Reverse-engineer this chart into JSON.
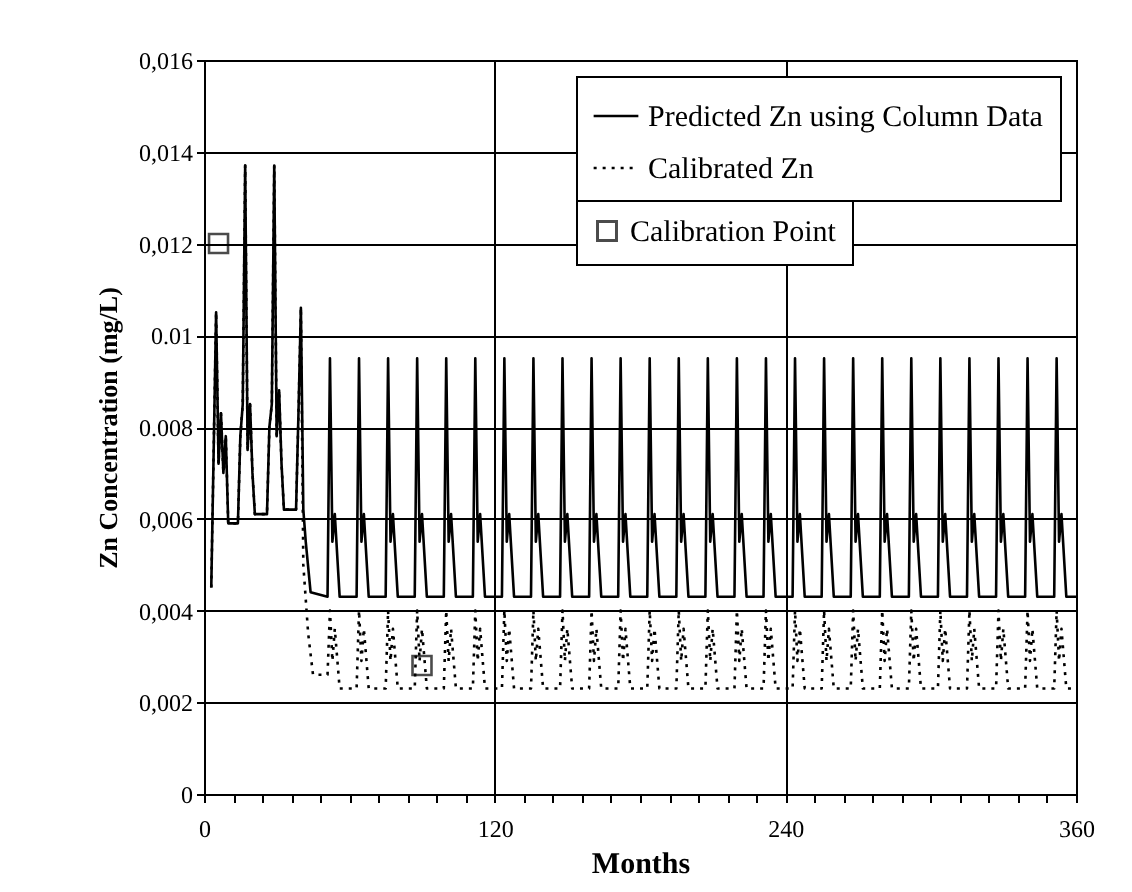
{
  "chart_data": {
    "type": "line",
    "xlabel": "Months",
    "ylabel": "Zn Concentration (mg/L)",
    "xlim": [
      0,
      360
    ],
    "ylim": [
      0,
      0.016
    ],
    "xticks": [
      0,
      {
        "value": 12,
        "label": null
      },
      {
        "value": 24,
        "label": null
      },
      {
        "value": 36,
        "label": null
      },
      {
        "value": 48,
        "label": null
      },
      {
        "value": 60,
        "label": null
      },
      {
        "value": 72,
        "label": null
      },
      {
        "value": 84,
        "label": null
      },
      {
        "value": 96,
        "label": null
      },
      {
        "value": 108,
        "label": null
      },
      120,
      {
        "value": 132,
        "label": null
      },
      {
        "value": 144,
        "label": null
      },
      {
        "value": 156,
        "label": null
      },
      {
        "value": 168,
        "label": null
      },
      {
        "value": 180,
        "label": null
      },
      {
        "value": 192,
        "label": null
      },
      {
        "value": 204,
        "label": null
      },
      {
        "value": 216,
        "label": null
      },
      {
        "value": 228,
        "label": null
      },
      240,
      {
        "value": 252,
        "label": null
      },
      {
        "value": 264,
        "label": null
      },
      {
        "value": 276,
        "label": null
      },
      {
        "value": 288,
        "label": null
      },
      {
        "value": 300,
        "label": null
      },
      {
        "value": 312,
        "label": null
      },
      {
        "value": 324,
        "label": null
      },
      {
        "value": 336,
        "label": null
      },
      {
        "value": 348,
        "label": null
      },
      360
    ],
    "yticks": [
      0,
      {
        "value": 0.002,
        "label": "0,002"
      },
      {
        "value": 0.004,
        "label": "0,004"
      },
      {
        "value": 0.006,
        "label": "0,006"
      },
      {
        "value": 0.008,
        "label": "0.008"
      },
      {
        "value": 0.01,
        "label": "0.01"
      },
      {
        "value": 0.012,
        "label": "0,012"
      },
      {
        "value": 0.014,
        "label": "0,014"
      },
      {
        "value": 0.016,
        "label": "0,016"
      }
    ],
    "grid": true,
    "legend": "top right",
    "series": [
      {
        "name": "Predicted Zn using Column Data",
        "type": "line",
        "color": "#000000",
        "line_style": "solid",
        "x": [
          3,
          4,
          5,
          6,
          7,
          8,
          9,
          10,
          14,
          15,
          16,
          17,
          18,
          19,
          20,
          21,
          26,
          27,
          28,
          29,
          30,
          31,
          32,
          33,
          38,
          39,
          40,
          41,
          42,
          44,
          51,
          52,
          53,
          54,
          56,
          63,
          64,
          65,
          66,
          68,
          75,
          76,
          77,
          78,
          80,
          87,
          88,
          89,
          90,
          92,
          99,
          100,
          101,
          102,
          104,
          111,
          112,
          113,
          114,
          116,
          123,
          124,
          125,
          126,
          128,
          135,
          136,
          137,
          138,
          140,
          147,
          148,
          149,
          150,
          152,
          159,
          160,
          161,
          162,
          164,
          171,
          172,
          173,
          174,
          176,
          183,
          184,
          185,
          186,
          188,
          195,
          196,
          197,
          198,
          200,
          207,
          208,
          209,
          210,
          212,
          219,
          220,
          221,
          222,
          224,
          231,
          232,
          233,
          234,
          236,
          243,
          244,
          245,
          246,
          248,
          255,
          256,
          257,
          258,
          260,
          267,
          268,
          269,
          270,
          272,
          279,
          280,
          281,
          282,
          284,
          291,
          292,
          293,
          294,
          296,
          303,
          304,
          305,
          306,
          308,
          315,
          316,
          317,
          318,
          320,
          327,
          328,
          329,
          330,
          332,
          339,
          340,
          341,
          342,
          344,
          351,
          352,
          353,
          354,
          356,
          360
        ],
        "values": [
          0.0045,
          0.0075,
          0.0105,
          0.0072,
          0.0083,
          0.007,
          0.0078,
          0.0059,
          0.0059,
          0.0078,
          0.0085,
          0.0137,
          0.0075,
          0.0085,
          0.007,
          0.0061,
          0.0061,
          0.008,
          0.0085,
          0.0137,
          0.0078,
          0.0088,
          0.0072,
          0.0062,
          0.0062,
          0.0083,
          0.0106,
          0.0062,
          0.0055,
          0.0044,
          0.0043,
          0.0095,
          0.0055,
          0.0061,
          0.0043,
          0.0043,
          0.0095,
          0.0055,
          0.0061,
          0.0043,
          0.0043,
          0.0095,
          0.0055,
          0.0061,
          0.0043,
          0.0043,
          0.0095,
          0.0055,
          0.0061,
          0.0043,
          0.0043,
          0.0095,
          0.0055,
          0.0061,
          0.0043,
          0.0043,
          0.0095,
          0.0055,
          0.0061,
          0.0043,
          0.0043,
          0.0095,
          0.0055,
          0.0061,
          0.0043,
          0.0043,
          0.0095,
          0.0055,
          0.0061,
          0.0043,
          0.0043,
          0.0095,
          0.0055,
          0.0061,
          0.0043,
          0.0043,
          0.0095,
          0.0055,
          0.0061,
          0.0043,
          0.0043,
          0.0095,
          0.0055,
          0.0061,
          0.0043,
          0.0043,
          0.0095,
          0.0055,
          0.0061,
          0.0043,
          0.0043,
          0.0095,
          0.0055,
          0.0061,
          0.0043,
          0.0043,
          0.0095,
          0.0055,
          0.0061,
          0.0043,
          0.0043,
          0.0095,
          0.0055,
          0.0061,
          0.0043,
          0.0043,
          0.0095,
          0.0055,
          0.0061,
          0.0043,
          0.0043,
          0.0095,
          0.0055,
          0.0061,
          0.0043,
          0.0043,
          0.0095,
          0.0055,
          0.0061,
          0.0043,
          0.0043,
          0.0095,
          0.0055,
          0.0061,
          0.0043,
          0.0043,
          0.0095,
          0.0055,
          0.0061,
          0.0043,
          0.0043,
          0.0095,
          0.0055,
          0.0061,
          0.0043,
          0.0043,
          0.0095,
          0.0055,
          0.0061,
          0.0043,
          0.0043,
          0.0095,
          0.0055,
          0.0061,
          0.0043,
          0.0043,
          0.0095,
          0.0055,
          0.0061,
          0.0043,
          0.0043,
          0.0095,
          0.0055,
          0.0061,
          0.0043,
          0.0043,
          0.0095,
          0.0055,
          0.0061,
          0.0043,
          0.0043
        ]
      },
      {
        "name": "Calibrated Zn",
        "type": "line",
        "color": "#000000",
        "line_style": "dotted",
        "x": [
          3,
          4,
          5,
          6,
          7,
          8,
          9,
          10,
          14,
          15,
          16,
          17,
          18,
          19,
          20,
          21,
          26,
          27,
          28,
          29,
          30,
          31,
          32,
          33,
          38,
          39,
          40,
          41,
          43,
          45,
          51,
          52,
          53,
          54,
          56,
          63,
          64,
          65,
          66,
          68,
          75,
          76,
          77,
          78,
          80,
          87,
          88,
          89,
          90,
          92,
          99,
          100,
          101,
          102,
          104,
          111,
          112,
          113,
          114,
          116,
          123,
          124,
          125,
          126,
          128,
          135,
          136,
          137,
          138,
          140,
          147,
          148,
          149,
          150,
          152,
          159,
          160,
          161,
          162,
          164,
          171,
          172,
          173,
          174,
          176,
          183,
          184,
          185,
          186,
          188,
          195,
          196,
          197,
          198,
          200,
          207,
          208,
          209,
          210,
          212,
          219,
          220,
          221,
          222,
          224,
          231,
          232,
          233,
          234,
          236,
          243,
          244,
          245,
          246,
          248,
          255,
          256,
          257,
          258,
          260,
          267,
          268,
          269,
          270,
          272,
          279,
          280,
          281,
          282,
          284,
          291,
          292,
          293,
          294,
          296,
          303,
          304,
          305,
          306,
          308,
          315,
          316,
          317,
          318,
          320,
          327,
          328,
          329,
          330,
          332,
          339,
          340,
          341,
          342,
          344,
          351,
          352,
          353,
          354,
          356,
          360
        ],
        "values": [
          0.0045,
          0.0075,
          0.0105,
          0.0072,
          0.0083,
          0.007,
          0.0078,
          0.0059,
          0.0059,
          0.0078,
          0.0085,
          0.0137,
          0.0075,
          0.0085,
          0.007,
          0.0061,
          0.0061,
          0.008,
          0.0085,
          0.0137,
          0.0078,
          0.0088,
          0.0072,
          0.0062,
          0.0062,
          0.0083,
          0.0106,
          0.005,
          0.0035,
          0.0026,
          0.0026,
          0.004,
          0.0029,
          0.0036,
          0.0023,
          0.0023,
          0.004,
          0.0029,
          0.0036,
          0.0023,
          0.0023,
          0.004,
          0.0029,
          0.0036,
          0.0023,
          0.0023,
          0.004,
          0.0029,
          0.0036,
          0.0023,
          0.0023,
          0.004,
          0.0029,
          0.0036,
          0.0023,
          0.0023,
          0.004,
          0.0029,
          0.0036,
          0.0023,
          0.0023,
          0.004,
          0.0029,
          0.0036,
          0.0023,
          0.0023,
          0.004,
          0.0029,
          0.0036,
          0.0023,
          0.0023,
          0.004,
          0.0029,
          0.0036,
          0.0023,
          0.0023,
          0.004,
          0.0029,
          0.0036,
          0.0023,
          0.0023,
          0.004,
          0.0029,
          0.0036,
          0.0023,
          0.0023,
          0.004,
          0.0029,
          0.0036,
          0.0023,
          0.0023,
          0.004,
          0.0029,
          0.0036,
          0.0023,
          0.0023,
          0.004,
          0.0029,
          0.0036,
          0.0023,
          0.0023,
          0.004,
          0.0029,
          0.0036,
          0.0023,
          0.0023,
          0.004,
          0.0029,
          0.0036,
          0.0023,
          0.0023,
          0.004,
          0.0029,
          0.0036,
          0.0023,
          0.0023,
          0.004,
          0.0029,
          0.0036,
          0.0023,
          0.0023,
          0.004,
          0.0029,
          0.0036,
          0.0023,
          0.0023,
          0.004,
          0.0029,
          0.0036,
          0.0023,
          0.0023,
          0.004,
          0.0029,
          0.0036,
          0.0023,
          0.0023,
          0.004,
          0.0029,
          0.0036,
          0.0023,
          0.0023,
          0.004,
          0.0029,
          0.0036,
          0.0023,
          0.0023,
          0.004,
          0.0029,
          0.0036,
          0.0023,
          0.0023,
          0.004,
          0.0029,
          0.0036,
          0.0023,
          0.0023,
          0.004,
          0.0029,
          0.0036,
          0.0023,
          0.0023
        ]
      },
      {
        "name": "Calibration Point",
        "type": "scatter",
        "color": "#000000",
        "marker": "square",
        "x": [
          6,
          90
        ],
        "values": [
          0.012,
          0.0028
        ]
      }
    ]
  }
}
